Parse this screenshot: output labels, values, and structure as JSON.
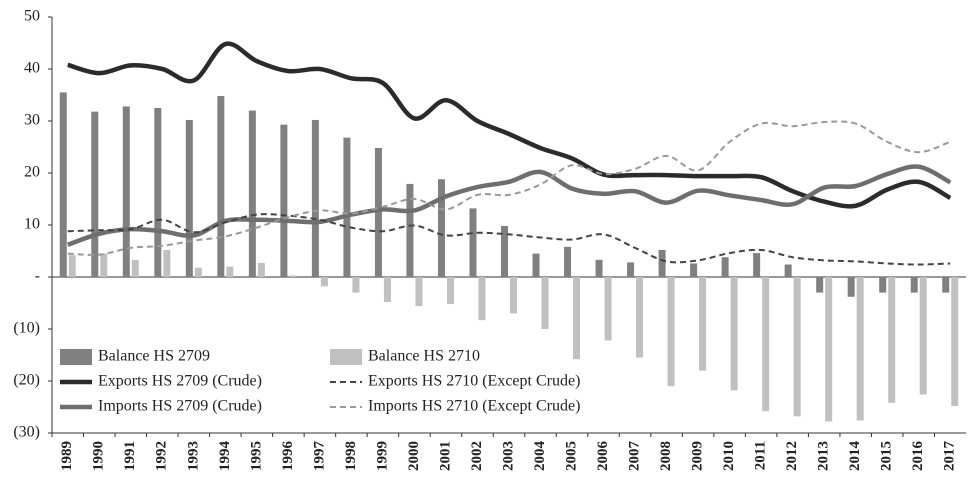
{
  "chart_data": {
    "type": "combo",
    "categories": [
      "1989",
      "1990",
      "1991",
      "1992",
      "1993",
      "1994",
      "1995",
      "1996",
      "1997",
      "1998",
      "1999",
      "2000",
      "2001",
      "2002",
      "2003",
      "2004",
      "2005",
      "2006",
      "2007",
      "2008",
      "2009",
      "2010",
      "2011",
      "2012",
      "2013",
      "2014",
      "2015",
      "2016",
      "2017"
    ],
    "ylim": [
      -30,
      50
    ],
    "yticks": [
      {
        "value": -30,
        "label": "(30)"
      },
      {
        "value": -20,
        "label": "(20)"
      },
      {
        "value": -10,
        "label": "(10)"
      },
      {
        "value": 0,
        "label": "-"
      },
      10,
      20,
      30,
      40,
      50
    ],
    "legend": "lower left",
    "series": [
      {
        "name": "Balance HS 2709",
        "kind": "bar",
        "color": "#808080",
        "values": [
          35.5,
          31.8,
          32.8,
          32.5,
          30.2,
          34.8,
          32,
          29.3,
          30.2,
          26.8,
          24.8,
          17.9,
          18.8,
          13.2,
          9.8,
          4.5,
          5.8,
          3.3,
          2.8,
          5.2,
          2.6,
          3.8,
          4.6,
          2.4,
          -3,
          -3.8,
          -3,
          -3,
          -3
        ]
      },
      {
        "name": "Exports HS 2709 (Crude)",
        "kind": "line",
        "dashed": false,
        "color": "#2b2b2b",
        "values": [
          40.8,
          39.2,
          40.7,
          40,
          37.8,
          44.8,
          41.5,
          39.6,
          40,
          38.2,
          37.3,
          30.5,
          34,
          30,
          27.5,
          24.8,
          22.8,
          19.7,
          19.6,
          19.6,
          19.4,
          19.4,
          19.2,
          16.5,
          14.5,
          13.7,
          16.8,
          18.3,
          15.2
        ]
      },
      {
        "name": "Imports HS 2709 (Crude)",
        "kind": "line",
        "dashed": false,
        "color": "#6e6e6e",
        "values": [
          6.2,
          8.3,
          9.2,
          8.8,
          8,
          10.8,
          11,
          10.8,
          10.6,
          12,
          13,
          12.8,
          15.5,
          17.3,
          18.3,
          20.2,
          17,
          16,
          16.5,
          14.3,
          16.6,
          15.7,
          14.8,
          14,
          17.2,
          17.5,
          19.8,
          21.2,
          18.2
        ]
      },
      {
        "name": "Balance HS 2710",
        "kind": "bar",
        "color": "#c0c0c0",
        "values": [
          4.2,
          4.5,
          3.3,
          5.2,
          1.8,
          2,
          2.7,
          0.3,
          -1.8,
          -3,
          -4.8,
          -5.6,
          -5.2,
          -8.3,
          -7,
          -10,
          -15.8,
          -12.2,
          -15.5,
          -21,
          -18,
          -21.8,
          -25.8,
          -26.8,
          -27.8,
          -27.6,
          -24.2,
          -22.6,
          -24.8
        ]
      },
      {
        "name": "Exports HS 2710 (Except Crude)",
        "kind": "line",
        "dashed": true,
        "color": "#444444",
        "values": [
          8.8,
          9,
          9.2,
          11,
          8.6,
          10.5,
          12,
          11.8,
          11,
          9.5,
          8.8,
          9.9,
          8,
          8.5,
          8.2,
          7.6,
          7.2,
          8.2,
          5.6,
          3,
          3.2,
          4.6,
          5.2,
          3.8,
          3.2,
          3,
          2.6,
          2.4,
          2.6
        ]
      },
      {
        "name": "Imports HS 2710 (Except Crude)",
        "kind": "line",
        "dashed": true,
        "color": "#999999",
        "values": [
          4.5,
          4.3,
          5.6,
          6,
          7,
          7.8,
          9.5,
          11.5,
          12.8,
          12.2,
          13.5,
          15,
          13,
          15.8,
          15.8,
          17.8,
          21.5,
          19.8,
          20.8,
          23.3,
          20.5,
          26,
          29.5,
          29,
          29.8,
          29.5,
          26,
          24,
          26
        ]
      }
    ]
  }
}
